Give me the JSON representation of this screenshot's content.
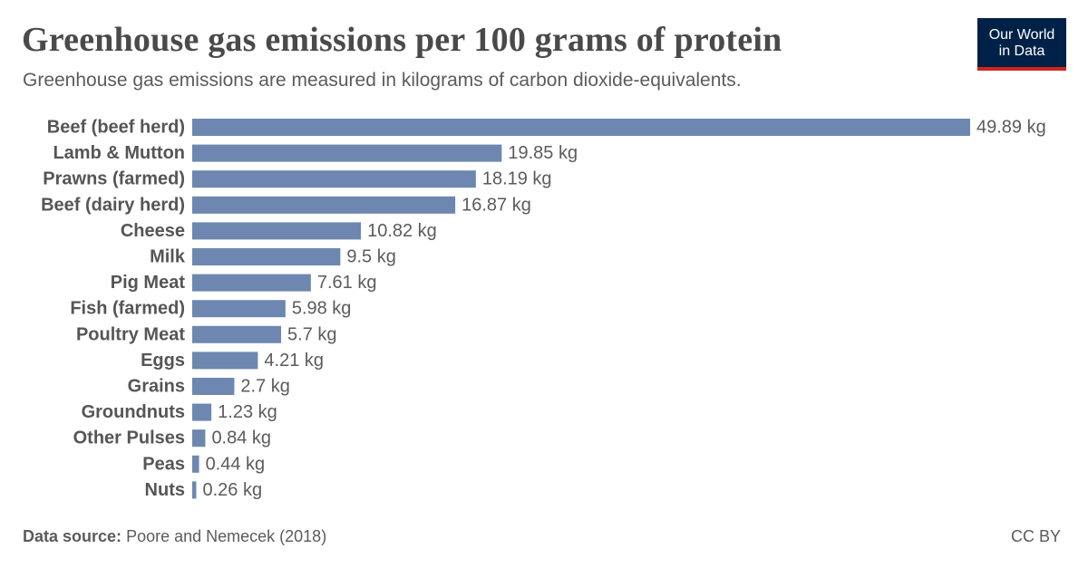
{
  "header": {
    "title": "Greenhouse gas emissions per 100 grams of protein",
    "subtitle": "Greenhouse gas emissions are measured in kilograms of carbon dioxide-equivalents."
  },
  "logo": {
    "line1": "Our World",
    "line2": "in Data"
  },
  "footer": {
    "source_label": "Data source:",
    "source_text": "Poore and Nemecek (2018)",
    "license": "CC BY"
  },
  "colors": {
    "bar": "#6d87b0",
    "logo_bg": "#002147",
    "logo_accent": "#ce261e"
  },
  "chart_data": {
    "type": "bar",
    "orientation": "horizontal",
    "title": "Greenhouse gas emissions per 100 grams of protein",
    "unit": "kg",
    "categories": [
      "Beef (beef herd)",
      "Lamb & Mutton",
      "Prawns (farmed)",
      "Beef (dairy herd)",
      "Cheese",
      "Milk",
      "Pig Meat",
      "Fish (farmed)",
      "Poultry Meat",
      "Eggs",
      "Grains",
      "Groundnuts",
      "Other Pulses",
      "Peas",
      "Nuts"
    ],
    "values": [
      49.89,
      19.85,
      18.19,
      16.87,
      10.82,
      9.5,
      7.61,
      5.98,
      5.7,
      4.21,
      2.7,
      1.23,
      0.84,
      0.44,
      0.26
    ],
    "value_labels": [
      "49.89 kg",
      "19.85 kg",
      "18.19 kg",
      "16.87 kg",
      "10.82 kg",
      "9.5 kg",
      "7.61 kg",
      "5.98 kg",
      "5.7 kg",
      "4.21 kg",
      "2.7 kg",
      "1.23 kg",
      "0.84 kg",
      "0.44 kg",
      "0.26 kg"
    ],
    "xlim": [
      0,
      49.89
    ]
  }
}
